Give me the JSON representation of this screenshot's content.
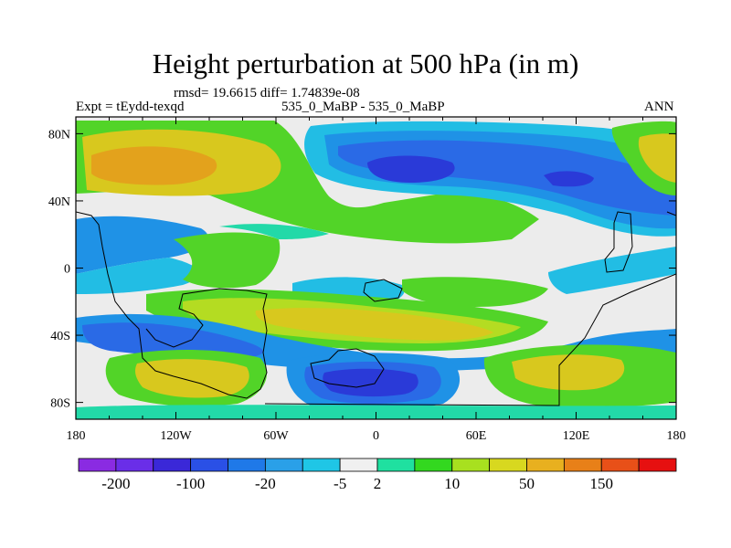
{
  "chart_data": {
    "type": "heatmap",
    "title": "Height perturbation at 500 hPa (in m)",
    "stats_line": "rmsd= 19.6615 diff= 1.74839e-08",
    "left_label": "Expt = tEydd-texqd",
    "center_label": "535_0_MaBP - 535_0_MaBP",
    "right_label": "ANN",
    "x_ticks": [
      "180",
      "120W",
      "60W",
      "0",
      "60E",
      "120E",
      "180"
    ],
    "y_ticks": [
      "80N",
      "40N",
      "0",
      "40S",
      "80S"
    ],
    "lon_range": [
      -180,
      180
    ],
    "lat_range": [
      -90,
      90
    ],
    "colorbar": {
      "colors": [
        "#8a2be2",
        "#6a2ee8",
        "#3a28d8",
        "#2a50e6",
        "#1f79e8",
        "#2aa0e8",
        "#1fc6e6",
        "#f0f0f0",
        "#1fe0a0",
        "#33d81f",
        "#a8e01f",
        "#d8d81f",
        "#e8b01f",
        "#e88018",
        "#e85018",
        "#e61010"
      ],
      "labels": [
        "-200",
        "-100",
        "-20",
        "-5",
        "2",
        "10",
        "50",
        "150"
      ],
      "label_boundaries": [
        1,
        3,
        5,
        7,
        8,
        10,
        12,
        14
      ]
    },
    "field_colors": {
      "strong_neg": "#2a3ad8",
      "neg": "#2a6ae6",
      "mid_neg": "#1f92e6",
      "light_neg": "#22bde4",
      "neutral": "#ececec",
      "light_pos": "#22d9a8",
      "pos": "#52d428",
      "mid_pos": "#b4dc22",
      "high_pos": "#d8c81e",
      "peak": "#e3a21c"
    }
  }
}
